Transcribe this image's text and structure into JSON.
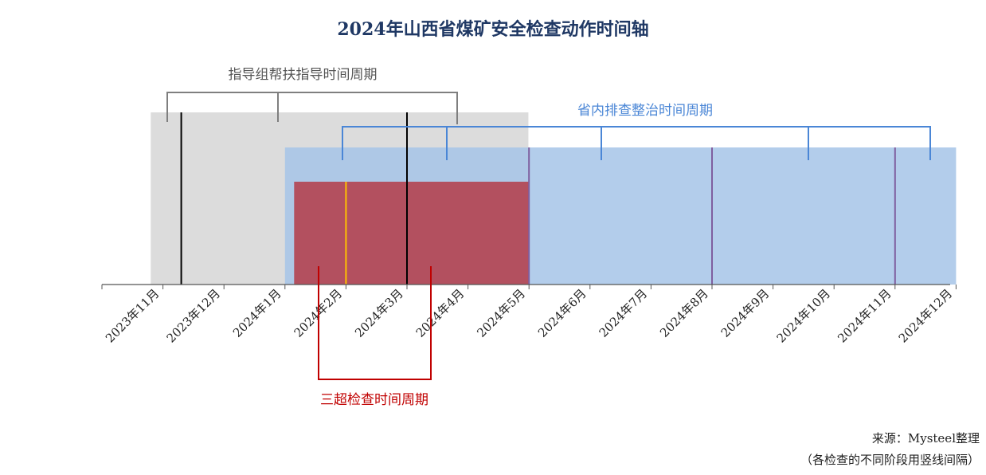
{
  "chart_data": {
    "type": "timeline",
    "title": "2024年山西省煤矿安全检查动作时间轴",
    "categories": [
      "2023年11月",
      "2023年12月",
      "2024年1月",
      "2024年2月",
      "2024年3月",
      "2024年4月",
      "2024年5月",
      "2024年6月",
      "2024年7月",
      "2024年8月",
      "2024年9月",
      "2024年10月",
      "2024年11月",
      "2024年12月"
    ],
    "periods": [
      {
        "name": "指导组帮扶指导时间周期",
        "start": 0.8,
        "end": 6.99,
        "color": "#dcdcdc",
        "divider_color": "#000000",
        "dividers": [
          1.3,
          5.0
        ]
      },
      {
        "name": "省内排查整治时间周期",
        "start": 3.0,
        "end": 14.0,
        "color": "#a6c4e8",
        "divider_color": "#7f5f9f",
        "dividers": [
          7.0,
          10.0,
          13.0
        ]
      },
      {
        "name": "三超检查时间周期",
        "start": 3.15,
        "end": 7.0,
        "color": "#b34a57",
        "divider_color": "#ffc000",
        "dividers": [
          4.0
        ]
      }
    ],
    "black_dividers_on_red": [
      5.0
    ]
  },
  "source_note": "来源：Mysteel整理",
  "source_note_sub": "（各检查的不同阶段用竖线间隔）",
  "colors": {
    "title": "#1f3864",
    "gray_bracket": "#7f7f7f",
    "blue_bracket": "#4a86d6",
    "red_bracket": "#c00000"
  }
}
